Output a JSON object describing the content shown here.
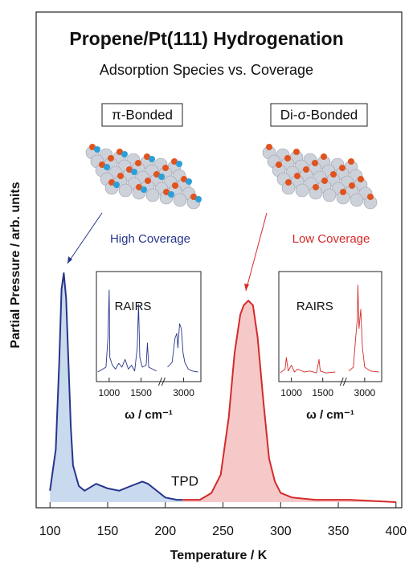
{
  "chart_data": [
    {
      "type": "line",
      "title": "Propene/Pt(111) Hydrogenation",
      "subtitle": "Adsorption Species vs. Coverage",
      "x_label": "Temperature / K",
      "y_label": "Partial Pressure / arb. units",
      "annotations": [
        "π-Bonded",
        "Di-σ-Bonded",
        "TPD"
      ],
      "xlim": [
        88,
        405
      ],
      "xticks": [
        100,
        150,
        200,
        250,
        300,
        350,
        400
      ],
      "series": [
        {
          "name": "High Coverage",
          "color": "#26358a",
          "fill": "#bcd0ea",
          "x": [
            100,
            105,
            108,
            110,
            112,
            114,
            116,
            118,
            120,
            125,
            130,
            140,
            150,
            160,
            170,
            180,
            185,
            190,
            200,
            210,
            215
          ],
          "values": [
            5,
            23,
            61,
            93,
            100,
            89,
            61,
            33,
            16,
            7,
            5,
            8,
            6,
            5,
            7,
            9,
            8,
            6,
            2,
            1,
            1
          ]
        },
        {
          "name": "Low Coverage",
          "color": "#d42a2a",
          "fill": "#f4bcbc",
          "x": [
            215,
            230,
            240,
            248,
            255,
            260,
            265,
            268,
            272,
            276,
            280,
            285,
            290,
            295,
            300,
            310,
            330,
            360,
            400
          ],
          "values": [
            1,
            1,
            4,
            12,
            37,
            65,
            82,
            86,
            88,
            86,
            72,
            44,
            19,
            9,
            4,
            2,
            1,
            1,
            0
          ]
        }
      ]
    },
    {
      "type": "line",
      "title": "RAIRS",
      "x_label": "ω / cm⁻¹",
      "xlim": [
        800,
        3300
      ],
      "xbreak": [
        1750,
        2700
      ],
      "xticks": [
        1000,
        1500,
        3000
      ],
      "series": [
        {
          "color": "#26358a",
          "x": [
            820,
            900,
            950,
            980,
            1000,
            1010,
            1050,
            1100,
            1150,
            1200,
            1250,
            1300,
            1350,
            1400,
            1440,
            1460,
            1480,
            1520,
            1580,
            1600,
            1620,
            1680,
            1740,
            2200,
            2720,
            2800,
            2850,
            2880,
            2900,
            2930,
            2960,
            2990,
            3020,
            3080,
            3150,
            3250
          ],
          "values": [
            5,
            8,
            10,
            40,
            90,
            20,
            12,
            8,
            14,
            10,
            18,
            8,
            12,
            6,
            30,
            75,
            20,
            10,
            12,
            35,
            10,
            8,
            6,
            null,
            10,
            15,
            40,
            45,
            30,
            55,
            50,
            25,
            15,
            8,
            6,
            5
          ]
        }
      ]
    },
    {
      "type": "line",
      "title": "RAIRS",
      "x_label": "ω / cm⁻¹",
      "xlim": [
        800,
        3300
      ],
      "xbreak": [
        1750,
        2700
      ],
      "xticks": [
        1000,
        1500,
        3000
      ],
      "series": [
        {
          "color": "#d42a2a",
          "x": [
            820,
            900,
            920,
            950,
            1000,
            1050,
            1100,
            1200,
            1300,
            1400,
            1440,
            1460,
            1550,
            1700,
            2200,
            2720,
            2800,
            2840,
            2870,
            2880,
            2900,
            2930,
            2960,
            3000,
            3100,
            3250
          ],
          "values": [
            4,
            8,
            20,
            6,
            12,
            5,
            8,
            5,
            6,
            4,
            18,
            6,
            4,
            5,
            null,
            6,
            10,
            40,
            60,
            95,
            50,
            70,
            30,
            10,
            6,
            5
          ]
        }
      ]
    }
  ]
}
